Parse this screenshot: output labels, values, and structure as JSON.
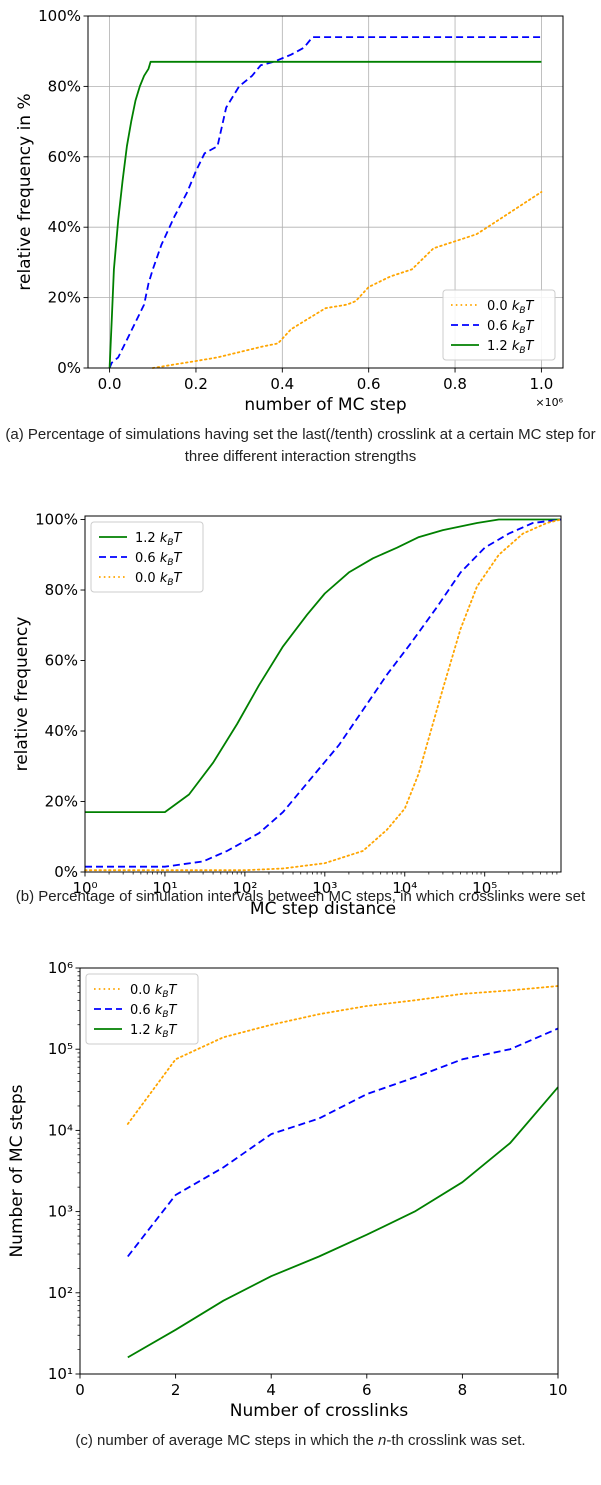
{
  "colors": {
    "orange": "#ffa500",
    "blue": "#0000ff",
    "green": "#008000",
    "grid": "#b0b0b0"
  },
  "captions": {
    "a": "(a) Percentage of simulations having set the last(/tenth) crosslink at a certain MC step for three different interaction strengths",
    "b": "(b) Percentage of simulation intervals between MC steps, in which crosslinks were set",
    "c_pre": "(c) number of average MC steps in which the ",
    "c_n": "n",
    "c_post": "-th crosslink was set."
  },
  "chart_data": [
    {
      "type": "line",
      "xlabel": "number of MC step",
      "ylabel": "relative frequency in %",
      "x_offset_label": "×10⁶",
      "xlim": [
        -0.05,
        1.05
      ],
      "ylim": [
        0,
        100
      ],
      "x_ticks": [
        0.0,
        0.2,
        0.4,
        0.6,
        0.8,
        1.0
      ],
      "x_tick_labels": [
        "0.0",
        "0.2",
        "0.4",
        "0.6",
        "0.8",
        "1.0"
      ],
      "y_ticks": [
        0,
        20,
        40,
        60,
        80,
        100
      ],
      "y_tick_labels": [
        "0%",
        "20%",
        "40%",
        "60%",
        "80%",
        "100%"
      ],
      "grid": true,
      "legend": "bottom-right",
      "series": [
        {
          "name": "0.0 k_BT",
          "style": "dotted",
          "color": "orange",
          "x": [
            0.1,
            0.15,
            0.2,
            0.25,
            0.3,
            0.35,
            0.39,
            0.42,
            0.46,
            0.5,
            0.55,
            0.57,
            0.6,
            0.65,
            0.7,
            0.75,
            0.8,
            0.85,
            0.9,
            0.95,
            1.0
          ],
          "y": [
            0,
            1,
            2,
            3,
            4.5,
            6,
            7,
            11,
            14,
            17,
            18,
            19,
            23,
            26,
            28,
            34,
            36,
            38,
            42,
            46,
            50
          ]
        },
        {
          "name": "0.6 k_BT",
          "style": "dashed",
          "color": "blue",
          "x": [
            0.0,
            0.005,
            0.02,
            0.04,
            0.06,
            0.08,
            0.09,
            0.1,
            0.12,
            0.15,
            0.18,
            0.2,
            0.22,
            0.25,
            0.27,
            0.3,
            0.33,
            0.35,
            0.38,
            0.42,
            0.45,
            0.47,
            0.5,
            0.7,
            1.0
          ],
          "y": [
            0,
            1.5,
            3,
            8,
            13,
            18,
            24,
            28,
            35,
            43,
            50,
            56,
            61,
            63,
            74,
            80,
            83,
            86,
            87,
            89,
            91,
            94,
            94,
            94,
            94
          ]
        },
        {
          "name": "1.2 k_BT",
          "style": "solid",
          "color": "green",
          "x": [
            0.0,
            0.005,
            0.01,
            0.02,
            0.03,
            0.04,
            0.05,
            0.06,
            0.07,
            0.08,
            0.09,
            0.095,
            0.1,
            0.2,
            0.6,
            1.0
          ],
          "y": [
            0,
            14,
            28,
            42,
            53,
            63,
            70,
            76,
            80,
            83,
            85,
            87,
            87,
            87,
            87,
            87
          ]
        }
      ]
    },
    {
      "type": "line",
      "xlabel": "MC step distance",
      "ylabel": "relative frequency",
      "x_scale": "log",
      "xlim": [
        1,
        900000
      ],
      "ylim": [
        0,
        101
      ],
      "x_ticks": [
        1,
        10,
        100,
        1000,
        10000,
        100000
      ],
      "x_tick_labels": [
        "10⁰",
        "10¹",
        "10²",
        "10³",
        "10⁴",
        "10⁵"
      ],
      "y_ticks": [
        0,
        20,
        40,
        60,
        80,
        100
      ],
      "y_tick_labels": [
        "0%",
        "20%",
        "40%",
        "60%",
        "80%",
        "100%"
      ],
      "grid": false,
      "legend": "top-left",
      "series": [
        {
          "name": "1.2 k_BT",
          "style": "solid",
          "color": "green",
          "x": [
            1,
            10,
            20,
            40,
            80,
            150,
            300,
            600,
            1000,
            2000,
            4000,
            8000,
            15000,
            30000,
            80000,
            150000,
            900000
          ],
          "y": [
            17,
            17,
            22,
            31,
            42,
            53,
            64,
            73,
            79,
            85,
            89,
            92,
            95,
            97,
            99,
            100,
            100
          ]
        },
        {
          "name": "0.6 k_BT",
          "style": "dashed",
          "color": "blue",
          "x": [
            1,
            10,
            30,
            60,
            150,
            300,
            700,
            1500,
            3000,
            6000,
            12000,
            25000,
            50000,
            100000,
            200000,
            400000,
            900000
          ],
          "y": [
            1.5,
            1.5,
            3,
            6,
            11,
            17,
            27,
            36,
            46,
            56,
            65,
            75,
            85,
            92,
            96,
            99,
            100
          ]
        },
        {
          "name": "0.0 k_BT",
          "style": "dotted",
          "color": "orange",
          "x": [
            1,
            100,
            300,
            1000,
            3000,
            6000,
            10000,
            15000,
            20000,
            30000,
            50000,
            80000,
            150000,
            300000,
            600000,
            900000
          ],
          "y": [
            0.5,
            0.5,
            1,
            2.5,
            6,
            12,
            18,
            28,
            38,
            52,
            69,
            81,
            90,
            96,
            99,
            100
          ]
        }
      ]
    },
    {
      "type": "line",
      "xlabel": "Number of crosslinks",
      "ylabel": "Number of MC steps",
      "y_scale": "log",
      "xlim": [
        0,
        10
      ],
      "ylim": [
        10,
        1000000
      ],
      "x_ticks": [
        0,
        2,
        4,
        6,
        8,
        10
      ],
      "x_tick_labels": [
        "0",
        "2",
        "4",
        "6",
        "8",
        "10"
      ],
      "y_ticks": [
        10,
        100,
        1000,
        10000,
        100000,
        1000000
      ],
      "y_tick_labels": [
        "10¹",
        "10²",
        "10³",
        "10⁴",
        "10⁵",
        "10⁶"
      ],
      "grid": false,
      "legend": "top-left",
      "series": [
        {
          "name": "0.0 k_BT",
          "style": "dotted",
          "color": "orange",
          "x": [
            1,
            2,
            3,
            4,
            5,
            6,
            7,
            8,
            9,
            10
          ],
          "y": [
            12000,
            75000,
            140000,
            200000,
            270000,
            340000,
            400000,
            480000,
            530000,
            600000
          ]
        },
        {
          "name": "0.6 k_BT",
          "style": "dashed",
          "color": "blue",
          "x": [
            1,
            2,
            3,
            4,
            5,
            6,
            7,
            8,
            9,
            10
          ],
          "y": [
            280,
            1600,
            3500,
            9000,
            14000,
            28000,
            45000,
            75000,
            100000,
            180000
          ]
        },
        {
          "name": "1.2 k_BT",
          "style": "solid",
          "color": "green",
          "x": [
            1,
            2,
            3,
            4,
            5,
            6,
            7,
            8,
            9,
            10
          ],
          "y": [
            16,
            35,
            80,
            160,
            280,
            520,
            1000,
            2300,
            7000,
            34000
          ]
        }
      ]
    }
  ]
}
